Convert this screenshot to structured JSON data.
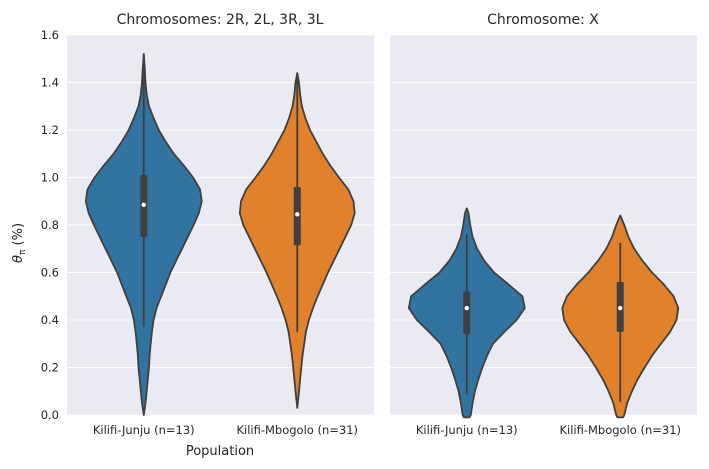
{
  "chart_data": [
    {
      "type": "violin",
      "title": "Chromosomes: 2R, 2L, 3R, 3L",
      "xlabel": "Population",
      "ylabel_symbol": "θ",
      "ylabel_subscript": "π",
      "ylabel_unit": "(%)",
      "ylim": [
        0,
        1.6
      ],
      "yticks": [
        "0.0",
        "0.2",
        "0.4",
        "0.6",
        "0.8",
        "1.0",
        "1.2",
        "1.4",
        "1.6"
      ],
      "ytick_values": [
        0.0,
        0.2,
        0.4,
        0.6,
        0.8,
        1.0,
        1.2,
        1.4,
        1.6
      ],
      "categories": [
        "Kilifi-Junju (n=13)",
        "Kilifi-Mbogolo (n=31)"
      ],
      "colors": [
        "#3274a1",
        "#e1812c"
      ],
      "violins": [
        {
          "min": 0.0,
          "max": 1.52,
          "q1": 0.75,
          "median": 0.885,
          "q3": 1.01,
          "whisker_low": 0.37,
          "whisker_high": 1.52,
          "density": [
            [
              0.0,
              0.0
            ],
            [
              0.05,
              0.03
            ],
            [
              0.1,
              0.05
            ],
            [
              0.15,
              0.07
            ],
            [
              0.2,
              0.09
            ],
            [
              0.25,
              0.1
            ],
            [
              0.3,
              0.12
            ],
            [
              0.35,
              0.14
            ],
            [
              0.4,
              0.17
            ],
            [
              0.45,
              0.22
            ],
            [
              0.5,
              0.3
            ],
            [
              0.55,
              0.38
            ],
            [
              0.6,
              0.46
            ],
            [
              0.65,
              0.56
            ],
            [
              0.7,
              0.66
            ],
            [
              0.75,
              0.76
            ],
            [
              0.8,
              0.86
            ],
            [
              0.85,
              0.95
            ],
            [
              0.9,
              1.0
            ],
            [
              0.95,
              0.97
            ],
            [
              1.0,
              0.85
            ],
            [
              1.05,
              0.69
            ],
            [
              1.1,
              0.52
            ],
            [
              1.15,
              0.38
            ],
            [
              1.2,
              0.26
            ],
            [
              1.25,
              0.17
            ],
            [
              1.3,
              0.09
            ],
            [
              1.35,
              0.05
            ],
            [
              1.4,
              0.03
            ],
            [
              1.45,
              0.02
            ],
            [
              1.52,
              0.0
            ]
          ]
        },
        {
          "min": 0.03,
          "max": 1.44,
          "q1": 0.715,
          "median": 0.845,
          "q3": 0.96,
          "whisker_low": 0.35,
          "whisker_high": 1.44,
          "density": [
            [
              0.03,
              0.0
            ],
            [
              0.1,
              0.03
            ],
            [
              0.15,
              0.05
            ],
            [
              0.2,
              0.07
            ],
            [
              0.25,
              0.09
            ],
            [
              0.3,
              0.12
            ],
            [
              0.35,
              0.15
            ],
            [
              0.4,
              0.2
            ],
            [
              0.45,
              0.27
            ],
            [
              0.5,
              0.35
            ],
            [
              0.55,
              0.44
            ],
            [
              0.6,
              0.53
            ],
            [
              0.65,
              0.63
            ],
            [
              0.7,
              0.73
            ],
            [
              0.75,
              0.83
            ],
            [
              0.8,
              0.93
            ],
            [
              0.85,
              0.99
            ],
            [
              0.9,
              0.97
            ],
            [
              0.95,
              0.88
            ],
            [
              1.0,
              0.72
            ],
            [
              1.05,
              0.57
            ],
            [
              1.1,
              0.44
            ],
            [
              1.15,
              0.33
            ],
            [
              1.2,
              0.22
            ],
            [
              1.25,
              0.14
            ],
            [
              1.3,
              0.08
            ],
            [
              1.35,
              0.05
            ],
            [
              1.4,
              0.03
            ],
            [
              1.44,
              0.0
            ]
          ]
        }
      ]
    },
    {
      "type": "violin",
      "title": "Chromosome: X",
      "xlabel": "",
      "ylim": [
        0,
        1.6
      ],
      "categories": [
        "Kilifi-Junju (n=13)",
        "Kilifi-Mbogolo (n=31)"
      ],
      "colors": [
        "#3274a1",
        "#e1812c"
      ],
      "violins": [
        {
          "min": -0.01,
          "max": 0.87,
          "q1": 0.34,
          "median": 0.45,
          "q3": 0.52,
          "whisker_low": 0.085,
          "whisker_high": 0.76,
          "density": [
            [
              -0.01,
              0.05
            ],
            [
              0.0,
              0.07
            ],
            [
              0.05,
              0.1
            ],
            [
              0.1,
              0.14
            ],
            [
              0.15,
              0.2
            ],
            [
              0.2,
              0.27
            ],
            [
              0.25,
              0.35
            ],
            [
              0.3,
              0.45
            ],
            [
              0.35,
              0.65
            ],
            [
              0.4,
              0.86
            ],
            [
              0.45,
              1.0
            ],
            [
              0.5,
              0.96
            ],
            [
              0.55,
              0.72
            ],
            [
              0.6,
              0.47
            ],
            [
              0.65,
              0.3
            ],
            [
              0.7,
              0.18
            ],
            [
              0.75,
              0.1
            ],
            [
              0.8,
              0.06
            ],
            [
              0.85,
              0.03
            ],
            [
              0.87,
              0.0
            ]
          ]
        },
        {
          "min": -0.01,
          "max": 0.84,
          "q1": 0.35,
          "median": 0.45,
          "q3": 0.56,
          "whisker_low": 0.055,
          "whisker_high": 0.725,
          "density": [
            [
              -0.01,
              0.05
            ],
            [
              0.0,
              0.07
            ],
            [
              0.05,
              0.12
            ],
            [
              0.1,
              0.2
            ],
            [
              0.15,
              0.3
            ],
            [
              0.2,
              0.42
            ],
            [
              0.25,
              0.55
            ],
            [
              0.3,
              0.7
            ],
            [
              0.35,
              0.86
            ],
            [
              0.4,
              0.97
            ],
            [
              0.45,
              1.0
            ],
            [
              0.5,
              0.92
            ],
            [
              0.55,
              0.75
            ],
            [
              0.6,
              0.55
            ],
            [
              0.65,
              0.38
            ],
            [
              0.7,
              0.24
            ],
            [
              0.75,
              0.14
            ],
            [
              0.8,
              0.07
            ],
            [
              0.84,
              0.0
            ]
          ]
        }
      ]
    }
  ]
}
